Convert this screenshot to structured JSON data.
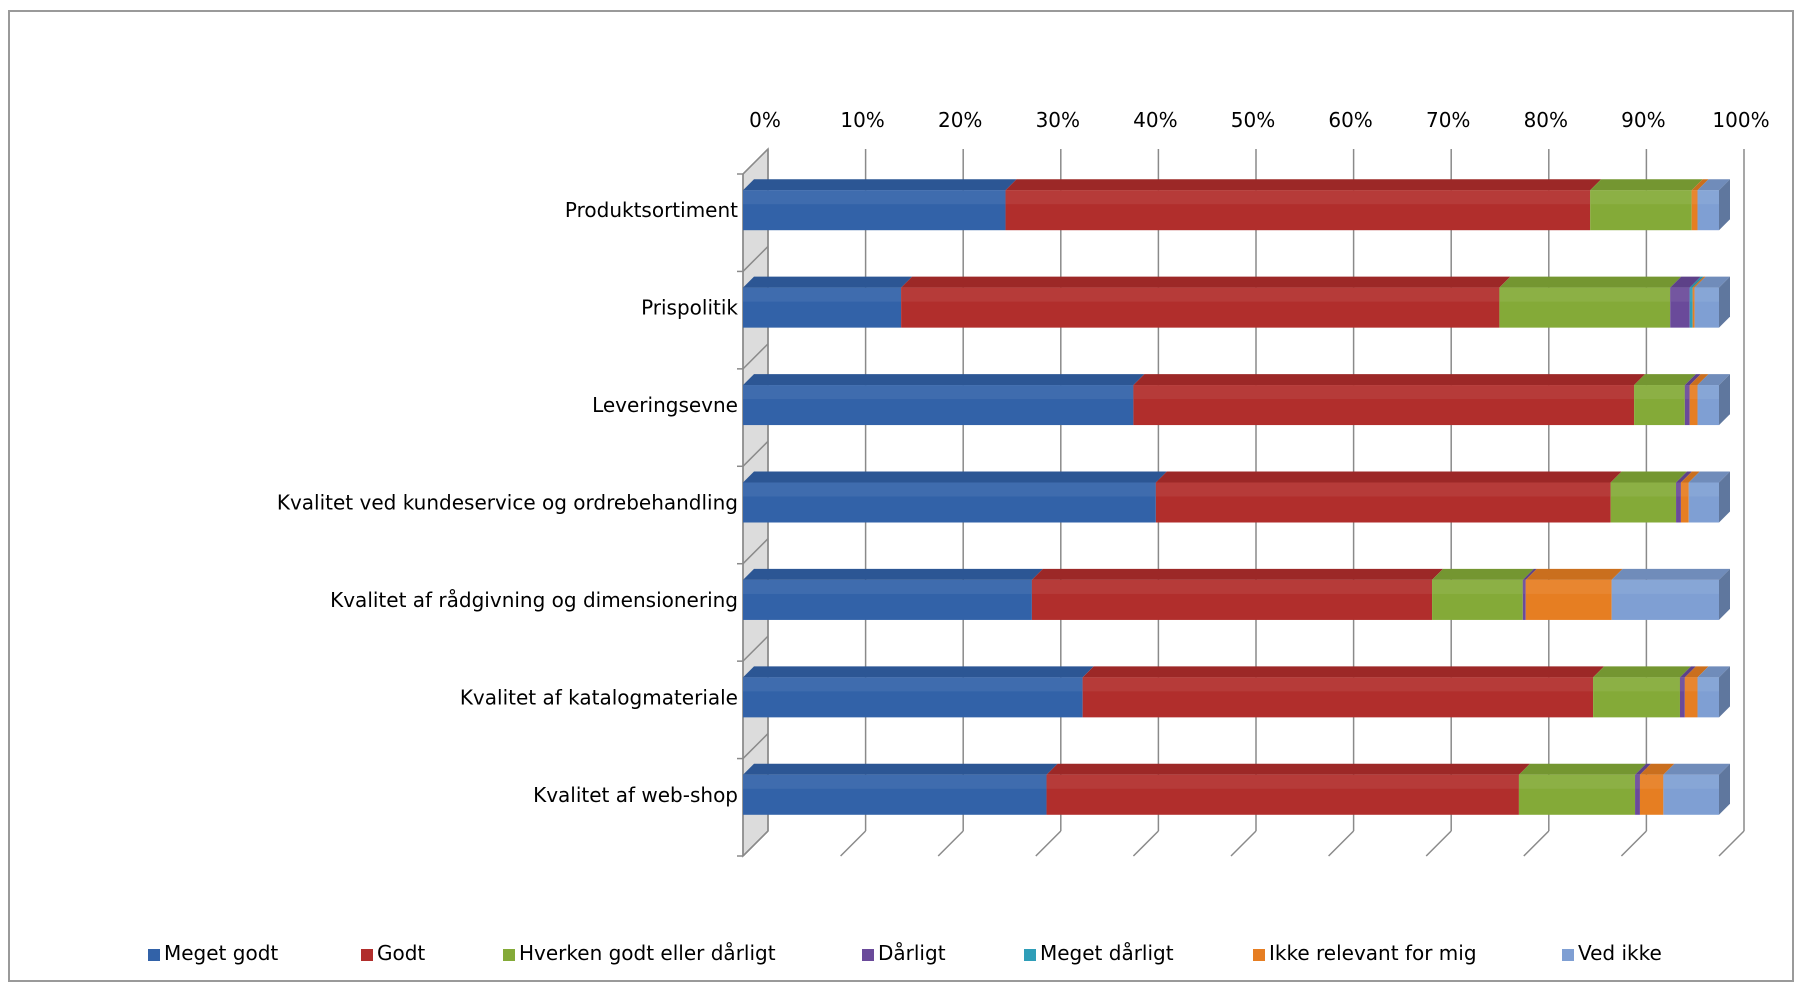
{
  "chart_data": {
    "type": "bar",
    "orientation": "horizontal",
    "stacked": "100%",
    "title": "",
    "xlabel": "",
    "ylabel": "",
    "xlim": [
      0,
      100
    ],
    "x_ticks": [
      "0%",
      "10%",
      "20%",
      "30%",
      "40%",
      "50%",
      "60%",
      "70%",
      "80%",
      "90%",
      "100%"
    ],
    "x_axis_position": "top",
    "grid": true,
    "legend_position": "bottom",
    "categories": [
      "Produktsortiment",
      "Prispolitik",
      "Leveringsevne",
      "Kvalitet ved kundeservice og ordrebehandling",
      "Kvalitet af rådgivning og dimensionering",
      "Kvalitet af katalogmateriale",
      "Kvalitet af web-shop"
    ],
    "series": [
      {
        "name": "Meget godt",
        "color": "#3262a8",
        "values": [
          26.9,
          16.2,
          40.0,
          42.3,
          29.6,
          34.8,
          31.1
        ]
      },
      {
        "name": "Godt",
        "color": "#b12e2c",
        "values": [
          59.9,
          61.3,
          51.3,
          46.6,
          41.0,
          52.3,
          48.4
        ]
      },
      {
        "name": "Hverken godt eller dårligt",
        "color": "#84aa38",
        "values": [
          10.4,
          17.5,
          5.2,
          6.7,
          9.3,
          8.9,
          11.9
        ]
      },
      {
        "name": "Dårligt",
        "color": "#6a4a9a",
        "values": [
          0.0,
          2.0,
          0.5,
          0.5,
          0.3,
          0.5,
          0.5
        ]
      },
      {
        "name": "Meget dårligt",
        "color": "#2f9eb8",
        "values": [
          0.0,
          0.3,
          0.0,
          0.0,
          0.0,
          0.0,
          0.0
        ]
      },
      {
        "name": "Ikke relevant for mig",
        "color": "#e67e22",
        "values": [
          0.6,
          0.2,
          0.8,
          0.8,
          8.8,
          1.3,
          2.4
        ]
      },
      {
        "name": "Ved ikke",
        "color": "#7f9fd3",
        "values": [
          2.2,
          2.5,
          2.2,
          3.1,
          11.0,
          2.2,
          5.7
        ]
      }
    ]
  }
}
